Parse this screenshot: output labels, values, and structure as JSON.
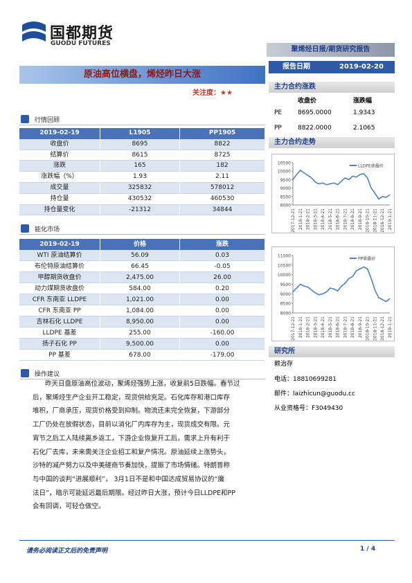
{
  "header": {
    "logo_cn": "国都期货",
    "logo_en": "GUODU FUTURES",
    "report_type": "聚烯烃日报/期货研究报告",
    "date_label": "报告日期",
    "date": "2019-02-20"
  },
  "title": "原油高位横盘，烯烃昨日大涨",
  "attention": "关注度：★★",
  "market_review": {
    "heading": "行情回顾",
    "columns": [
      "2019-02-19",
      "L1905",
      "PP1905"
    ],
    "rows": [
      [
        "收盘价",
        "8695",
        "8822"
      ],
      [
        "结算价",
        "8615",
        "8725"
      ],
      [
        "涨跌",
        "165",
        "182"
      ],
      [
        "涨跌幅（%）",
        "1.93",
        "2.11"
      ],
      [
        "成交量",
        "325832",
        "578012"
      ],
      [
        "持仓量",
        "430532",
        "460530"
      ],
      [
        "持仓量变化",
        "-21312",
        "34844"
      ]
    ]
  },
  "chem_market": {
    "heading": "能化市场",
    "columns": [
      "2019-02-19",
      "价格",
      "涨跌"
    ],
    "rows": [
      [
        "WTI 原油结算价",
        "56.09",
        "0.03"
      ],
      [
        "布伦特原油结算价",
        "66.45",
        "-0.05"
      ],
      [
        "甲醇期货收盘价",
        "2,475.00",
        "26.00"
      ],
      [
        "动力煤期货收盘价",
        "584.00",
        "0.20"
      ],
      [
        "CFR 东南亚 LLDPE",
        "1,021.00",
        "0.00"
      ],
      [
        "CFR 东南亚 PP",
        "1,084.00",
        "0.00"
      ],
      [
        "吉林石化 LLDPE",
        "8,950.00",
        "0.00"
      ],
      [
        "LLDPE 基差",
        "255.00",
        "-160.00"
      ],
      [
        "扬子石化 PP",
        "9,500.00",
        "0.00"
      ],
      [
        "PP 基差",
        "678.00",
        "-179.00"
      ]
    ]
  },
  "advice": {
    "heading": "操作建议",
    "lines": [
      "昨天日盘原油高位波动，聚烯烃强势上涨，收复前5日跌幅。春节过",
      "后，聚烯烃生产企业开工稳定，现货供给充足。石化库存和港口库存",
      "堆积，厂商承压，现货价格受到抑制。物流还未完全恢复，下游部分",
      "工厂仍处在放假状态，目前以消化厂内库存为主，现货成交有限。元",
      "宵节之后工人陆续离乡返工，下游企业恢复开工后，需求上升有利于",
      "石化厂去库，未来需关注企业招工和复产情况。原油延续上涨势头，",
      "沙特的减产努力以及中美磋商节奏加快，提振了市场情绪。特朗普称",
      "与中国的谈判“进展顺利”， 3月1日不是和中国达成贸易协议的“魔",
      "法日”，暗示可能延迟最后期限。经过昨日大涨，预计今日LLDPE和PP",
      "会有回调，可轻仓做空。"
    ]
  },
  "main_contract": {
    "heading": "主力合约涨跌",
    "columns": [
      "收盘价",
      "涨跌幅"
    ],
    "rows": [
      [
        "PE",
        "8695.0000",
        "1.9343"
      ],
      [
        "PP",
        "8822.0000",
        "2.1065"
      ]
    ]
  },
  "trend_heading": "主力合约走势",
  "charts": [
    {
      "type": "line",
      "categories": [
        "2017-12-21",
        null,
        "2018-1-21",
        null,
        "2018-2-21",
        null,
        "2018-3-21",
        null,
        "2018-4-21",
        null,
        "2018-5-21",
        null,
        "2018-6-21",
        null,
        "2018-7-21",
        null,
        "2018-8-21",
        null,
        "2018-9-21",
        null,
        "2018-10-21",
        null,
        "2018-11-21",
        null,
        "2018-12-21",
        null,
        "2019-1-21"
      ],
      "series": [
        {
          "name": "LLDPE收盘价",
          "color": "#4f81bd",
          "values": [
            9500,
            9800,
            10050,
            9900,
            9750,
            9600,
            9350,
            9250,
            9300,
            9200,
            9250,
            9300,
            9200,
            9400,
            9600,
            9500,
            9700,
            9650,
            9800,
            9850,
            9600,
            9000,
            8700,
            8350,
            8500,
            8450,
            8600
          ]
        }
      ],
      "ylim": [
        8000,
        10500
      ],
      "yticks": [
        8000,
        8500,
        9000,
        9500,
        10000,
        10500
      ]
    },
    {
      "type": "line",
      "categories": [
        "2017-12-21",
        null,
        "2018-1-21",
        null,
        "2018-2-21",
        null,
        "2018-3-21",
        null,
        "2018-4-21",
        null,
        "2018-5-21",
        null,
        "2018-6-21",
        null,
        "2018-7-21",
        null,
        "2018-8-21",
        null,
        "2018-9-21",
        null,
        "2018-10-21",
        null,
        "2018-11-21",
        null,
        "2018-12-21",
        null,
        "2019-1-21"
      ],
      "series": [
        {
          "name": "PP收盘价",
          "color": "#4f81bd",
          "values": [
            9100,
            9300,
            9500,
            9400,
            9350,
            9200,
            9050,
            8950,
            9000,
            9100,
            9300,
            9250,
            9150,
            9400,
            9550,
            9800,
            9900,
            10200,
            10300,
            10400,
            10300,
            9800,
            9200,
            8800,
            8700,
            8600,
            8750
          ]
        }
      ],
      "ylim": [
        8000,
        11000
      ],
      "yticks": [
        8000,
        8500,
        9000,
        9500,
        10000,
        10500,
        11000
      ]
    }
  ],
  "institute": {
    "heading": "研究所",
    "analyst": "赖治存",
    "phone": "电话：18810699281",
    "email": "邮件：laizhicun@guodu.cc",
    "license": "从业资格号：F3049430"
  },
  "footer": {
    "disclaimer": "请务必阅读正文后的免责声明",
    "page": "1 / 4"
  }
}
